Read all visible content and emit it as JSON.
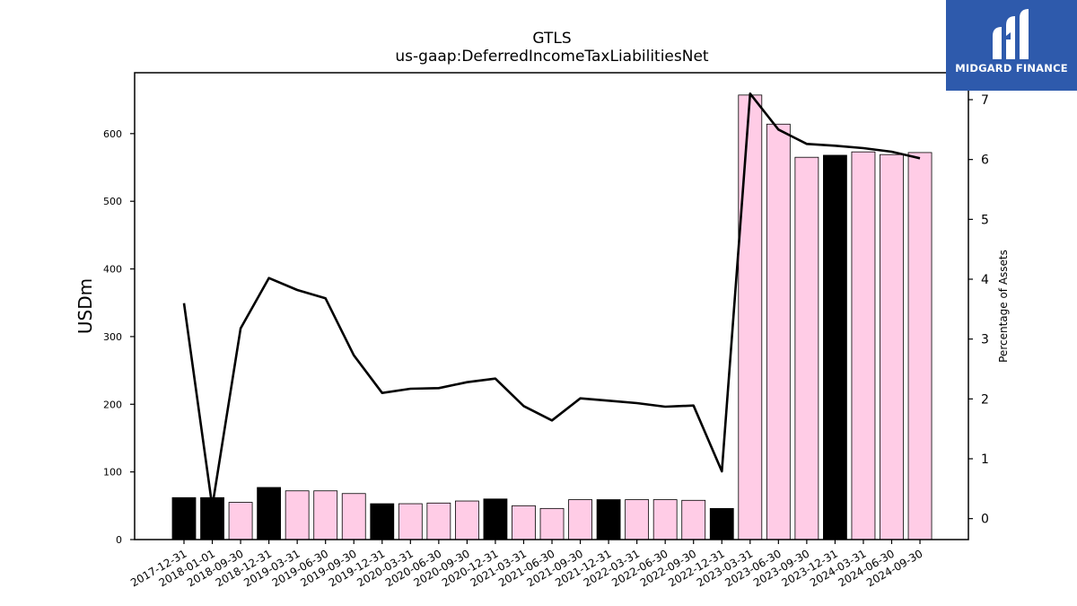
{
  "brand": {
    "name": "MIDGARD FINANCE",
    "logo_icon": "midgard-m-icon",
    "background": "#2e5aac"
  },
  "chart_data": {
    "type": "bar",
    "title": "GTLS",
    "subtitle": "us-gaap:DeferredIncomeTaxLiabilitiesNet",
    "ylabel": "USDm",
    "y2label": "Percentage of Assets",
    "ylim": [
      0,
      690
    ],
    "y2lim": [
      -0.35,
      7.45
    ],
    "yticks": [
      0,
      100,
      200,
      300,
      400,
      500,
      600
    ],
    "y2ticks": [
      0,
      1,
      2,
      3,
      4,
      5,
      6,
      7
    ],
    "grid": false,
    "categories": [
      "2017-12-31",
      "2018-01-01",
      "2018-09-30",
      "2018-12-31",
      "2019-03-31",
      "2019-06-30",
      "2019-09-30",
      "2019-12-31",
      "2020-03-31",
      "2020-06-30",
      "2020-09-30",
      "2020-12-31",
      "2021-03-31",
      "2021-06-30",
      "2021-09-30",
      "2021-12-31",
      "2022-03-31",
      "2022-06-30",
      "2022-09-30",
      "2022-12-31",
      "2023-03-31",
      "2023-06-30",
      "2023-09-30",
      "2023-12-31",
      "2024-03-31",
      "2024-06-30",
      "2024-09-30"
    ],
    "bar_colors": [
      "#000000",
      "#000000",
      "#ffcce6",
      "#000000",
      "#ffcce6",
      "#ffcce6",
      "#ffcce6",
      "#000000",
      "#ffcce6",
      "#ffcce6",
      "#ffcce6",
      "#000000",
      "#ffcce6",
      "#ffcce6",
      "#ffcce6",
      "#000000",
      "#ffcce6",
      "#ffcce6",
      "#ffcce6",
      "#000000",
      "#ffcce6",
      "#ffcce6",
      "#ffcce6",
      "#000000",
      "#ffcce6",
      "#ffcce6",
      "#ffcce6"
    ],
    "series": [
      {
        "type": "bar",
        "axis": "left",
        "values": [
          62,
          62,
          55,
          77,
          72,
          72,
          68,
          53,
          53,
          54,
          57,
          60,
          50,
          46,
          59,
          59,
          59,
          59,
          58,
          46,
          657,
          614,
          565,
          568,
          573,
          569,
          572
        ]
      },
      {
        "type": "line",
        "axis": "right",
        "color": "#000000",
        "values": [
          3.6,
          0.2,
          3.18,
          4.02,
          3.82,
          3.68,
          2.73,
          2.1,
          2.17,
          2.18,
          2.28,
          2.34,
          1.88,
          1.64,
          2.01,
          1.97,
          1.93,
          1.87,
          1.89,
          0.79,
          7.1,
          6.5,
          6.26,
          6.23,
          6.19,
          6.13,
          6.02
        ]
      }
    ]
  }
}
